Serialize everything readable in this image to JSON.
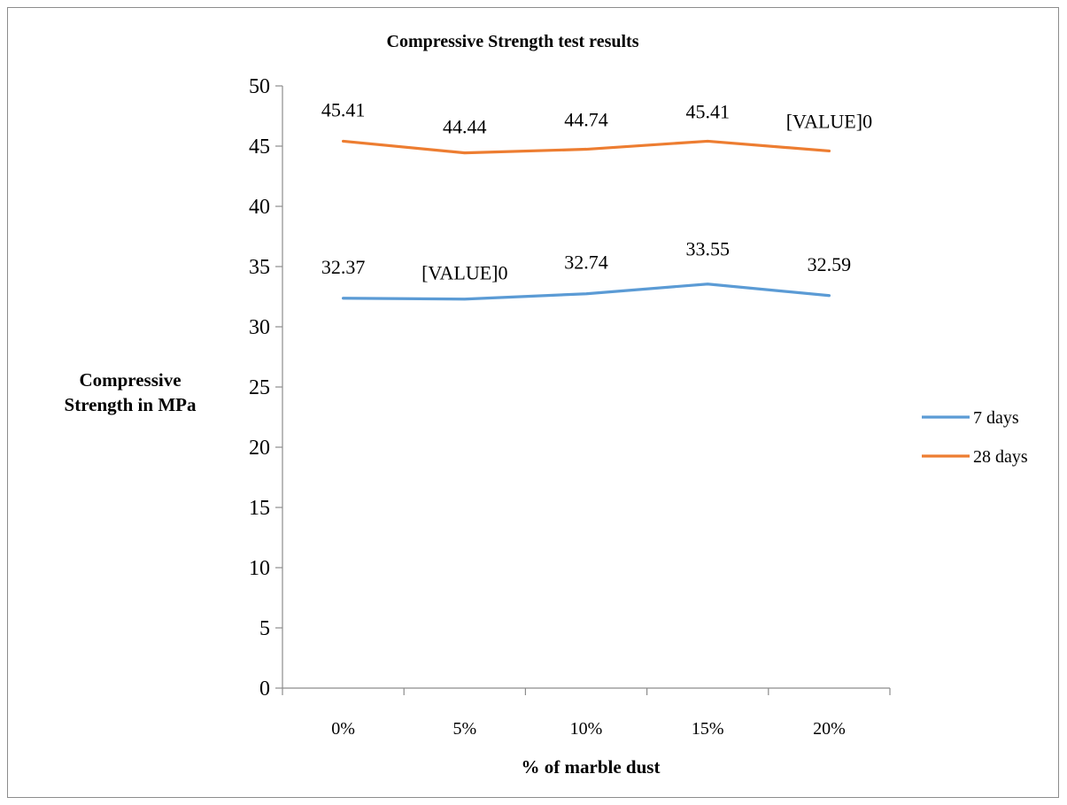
{
  "chart_data": {
    "type": "line",
    "title": "Compressive Strength test results",
    "xlabel": "% of marble dust",
    "ylabel": "Compressive Strength in MPa",
    "categories": [
      "0%",
      "5%",
      "10%",
      "15%",
      "20%"
    ],
    "ylim": [
      0,
      50
    ],
    "yticks": [
      "0",
      "5",
      "10",
      "15",
      "20",
      "25",
      "30",
      "35",
      "40",
      "45",
      "50"
    ],
    "grid": false,
    "legend": "right",
    "series": [
      {
        "name": "7 days",
        "color": "#5b9bd5",
        "values": [
          32.37,
          32.3,
          32.74,
          33.55,
          32.59
        ],
        "labels": [
          "32.37",
          "[VALUE]0",
          "32.74",
          "33.55",
          "32.59"
        ]
      },
      {
        "name": "28 days",
        "color": "#ed7d31",
        "values": [
          45.41,
          44.44,
          44.74,
          45.41,
          44.6
        ],
        "labels": [
          "45.41",
          "44.44",
          "44.74",
          "45.41",
          "[VALUE]0"
        ]
      }
    ]
  }
}
